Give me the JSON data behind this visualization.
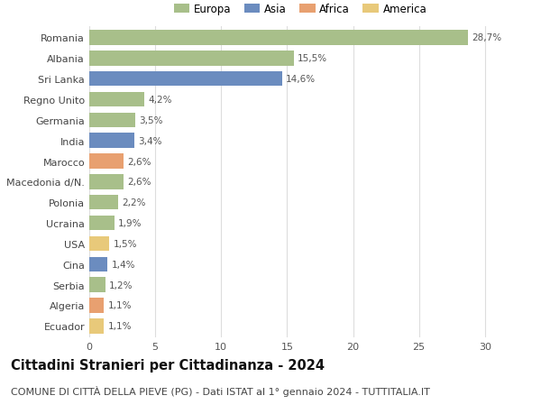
{
  "categories": [
    "Ecuador",
    "Algeria",
    "Serbia",
    "Cina",
    "USA",
    "Ucraina",
    "Polonia",
    "Macedonia d/N.",
    "Marocco",
    "India",
    "Germania",
    "Regno Unito",
    "Sri Lanka",
    "Albania",
    "Romania"
  ],
  "values": [
    1.1,
    1.1,
    1.2,
    1.4,
    1.5,
    1.9,
    2.2,
    2.6,
    2.6,
    3.4,
    3.5,
    4.2,
    14.6,
    15.5,
    28.7
  ],
  "labels": [
    "1,1%",
    "1,1%",
    "1,2%",
    "1,4%",
    "1,5%",
    "1,9%",
    "2,2%",
    "2,6%",
    "2,6%",
    "3,4%",
    "3,5%",
    "4,2%",
    "14,6%",
    "15,5%",
    "28,7%"
  ],
  "colors": [
    "#e8c97a",
    "#e8a070",
    "#a8bf8a",
    "#6b8cbf",
    "#e8c97a",
    "#a8bf8a",
    "#a8bf8a",
    "#a8bf8a",
    "#e8a070",
    "#6b8cbf",
    "#a8bf8a",
    "#a8bf8a",
    "#6b8cbf",
    "#a8bf8a",
    "#a8bf8a"
  ],
  "continent": [
    "America",
    "Africa",
    "Europa",
    "Asia",
    "America",
    "Europa",
    "Europa",
    "Europa",
    "Africa",
    "Asia",
    "Europa",
    "Europa",
    "Asia",
    "Europa",
    "Europa"
  ],
  "legend_labels": [
    "Europa",
    "Asia",
    "Africa",
    "America"
  ],
  "legend_colors": [
    "#a8bf8a",
    "#6b8cbf",
    "#e8a070",
    "#e8c97a"
  ],
  "title": "Cittadini Stranieri per Cittadinanza - 2024",
  "subtitle": "COMUNE DI CITTÀ DELLA PIEVE (PG) - Dati ISTAT al 1° gennaio 2024 - TUTTITALIA.IT",
  "xlim": [
    0,
    32
  ],
  "xticks": [
    0,
    5,
    10,
    15,
    20,
    25,
    30
  ],
  "background_color": "#ffffff",
  "grid_color": "#dddddd",
  "bar_height": 0.72,
  "title_fontsize": 10.5,
  "subtitle_fontsize": 8,
  "label_fontsize": 7.5,
  "tick_fontsize": 8,
  "legend_fontsize": 8.5
}
